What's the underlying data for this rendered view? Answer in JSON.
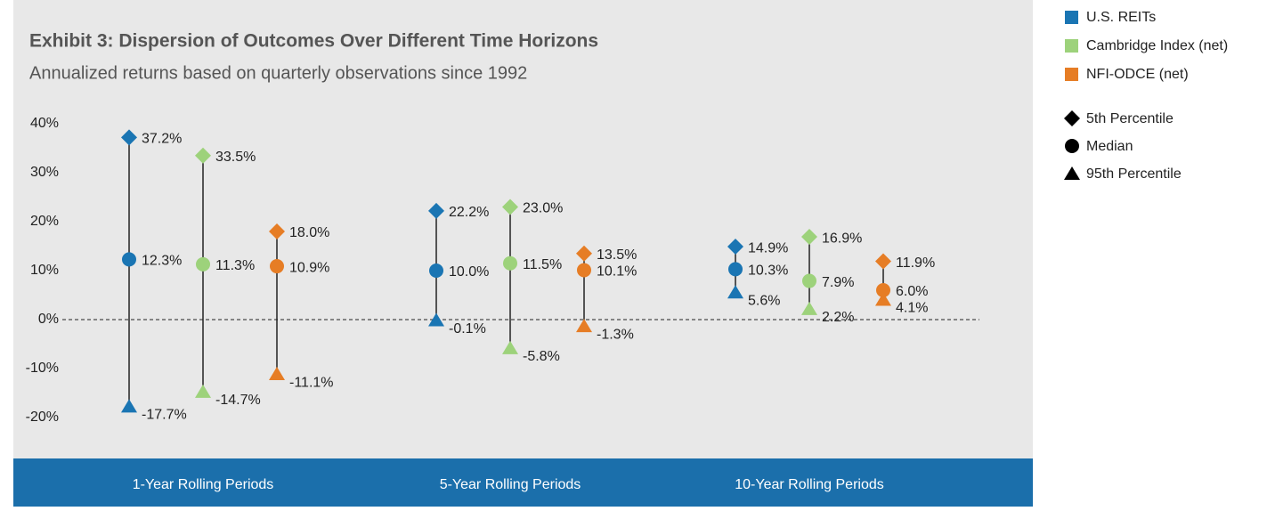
{
  "chart_data": {
    "type": "range",
    "title": "Exhibit 3: Dispersion of Outcomes Over Different Time Horizons",
    "subtitle": "Annualized returns based on quarterly observations since 1992",
    "categories": [
      "1-Year Rolling Periods",
      "5-Year Rolling Periods",
      "10-Year Rolling Periods"
    ],
    "markers": [
      {
        "name": "5th Percentile",
        "shape": "diamond"
      },
      {
        "name": "Median",
        "shape": "circle"
      },
      {
        "name": "95th Percentile",
        "shape": "triangle"
      }
    ],
    "series": [
      {
        "name": "U.S. REITs",
        "color": "#1a75b3",
        "values": [
          [
            37.2,
            12.3,
            -17.7
          ],
          [
            22.2,
            10.0,
            -0.1
          ],
          [
            14.9,
            10.3,
            5.6
          ]
        ],
        "value_labels": [
          [
            "37.2%",
            "12.3%",
            "-17.7%"
          ],
          [
            "22.2%",
            "10.0%",
            "-0.1%"
          ],
          [
            "14.9%",
            "10.3%",
            "5.6%"
          ]
        ]
      },
      {
        "name": "Cambridge Index (net)",
        "color": "#9dd27b",
        "values": [
          [
            33.5,
            11.3,
            -14.7
          ],
          [
            23.0,
            11.5,
            -5.8
          ],
          [
            16.9,
            7.9,
            2.2
          ]
        ],
        "value_labels": [
          [
            "33.5%",
            "11.3%",
            "-14.7%"
          ],
          [
            "23.0%",
            "11.5%",
            "-5.8%"
          ],
          [
            "16.9%",
            "7.9%",
            "2.2%"
          ]
        ]
      },
      {
        "name": "NFI-ODCE (net)",
        "color": "#e67d25",
        "values": [
          [
            18.0,
            10.9,
            -11.1
          ],
          [
            13.5,
            10.1,
            -1.3
          ],
          [
            11.9,
            6.0,
            4.1
          ]
        ],
        "value_labels": [
          [
            "18.0%",
            "10.9%",
            "-11.1%"
          ],
          [
            "13.5%",
            "10.1%",
            "-1.3%"
          ],
          [
            "11.9%",
            "6.0%",
            "4.1%"
          ]
        ]
      }
    ],
    "ylim": [
      -20,
      40
    ],
    "yticks": [
      {
        "value": -20,
        "label": "-20%"
      },
      {
        "value": -10,
        "label": "-10%"
      },
      {
        "value": 0,
        "label": "0%"
      },
      {
        "value": 10,
        "label": "10%"
      },
      {
        "value": 20,
        "label": "20%"
      },
      {
        "value": 30,
        "label": "30%"
      },
      {
        "value": 40,
        "label": "40%"
      }
    ]
  }
}
